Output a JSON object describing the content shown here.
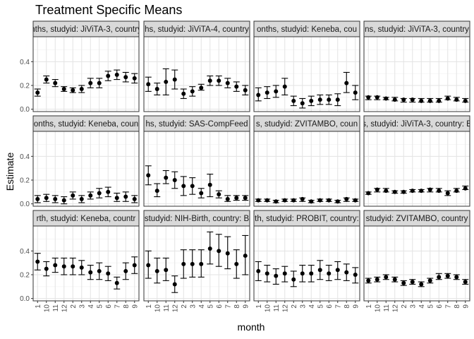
{
  "chart_data": {
    "type": "scatter",
    "title": "Treatment Specific Means",
    "xlabel": "month",
    "ylabel": "Estimate",
    "x_categories": [
      "1",
      "10",
      "11",
      "12",
      "2",
      "3",
      "4",
      "5",
      "6",
      "7",
      "8",
      "9"
    ],
    "y_ticks": [
      0.0,
      0.2,
      0.4
    ],
    "y_tick_labels": [
      "0.0",
      "0.2",
      "0.4"
    ],
    "ylim": [
      -0.02,
      0.61
    ],
    "grid": true,
    "panels": [
      {
        "strip": "nths, studyid: JiViTA-3, country",
        "est": [
          0.14,
          0.25,
          0.22,
          0.17,
          0.16,
          0.17,
          0.22,
          0.22,
          0.28,
          0.29,
          0.27,
          0.26
        ],
        "lo": [
          0.11,
          0.22,
          0.19,
          0.15,
          0.14,
          0.14,
          0.18,
          0.18,
          0.24,
          0.25,
          0.23,
          0.22
        ],
        "hi": [
          0.17,
          0.28,
          0.25,
          0.19,
          0.18,
          0.2,
          0.26,
          0.26,
          0.32,
          0.33,
          0.31,
          0.3
        ]
      },
      {
        "strip": "hs, studyid: JiViTA-4, country",
        "est": [
          0.21,
          0.17,
          0.23,
          0.25,
          0.13,
          0.15,
          0.18,
          0.24,
          0.24,
          0.22,
          0.19,
          0.16
        ],
        "lo": [
          0.15,
          0.12,
          0.12,
          0.17,
          0.09,
          0.11,
          0.16,
          0.2,
          0.2,
          0.18,
          0.15,
          0.12
        ],
        "hi": [
          0.27,
          0.22,
          0.34,
          0.33,
          0.17,
          0.19,
          0.21,
          0.28,
          0.28,
          0.26,
          0.23,
          0.2
        ]
      },
      {
        "strip": "onths, studyid: Keneba, cou",
        "est": [
          0.12,
          0.14,
          0.15,
          0.19,
          0.07,
          0.05,
          0.07,
          0.08,
          0.08,
          0.08,
          0.22,
          0.14
        ],
        "lo": [
          0.07,
          0.09,
          0.1,
          0.12,
          0.03,
          0.01,
          0.03,
          0.04,
          0.04,
          0.03,
          0.14,
          0.08
        ],
        "hi": [
          0.18,
          0.19,
          0.2,
          0.26,
          0.11,
          0.09,
          0.11,
          0.12,
          0.12,
          0.13,
          0.31,
          0.2
        ]
      },
      {
        "strip": "ns, studyid: JiViTA-3, country",
        "est": [
          0.1,
          0.1,
          0.09,
          0.08,
          0.08,
          0.08,
          0.07,
          0.07,
          0.07,
          0.09,
          0.08,
          0.07
        ],
        "lo": [
          0.08,
          0.08,
          0.08,
          0.07,
          0.06,
          0.06,
          0.06,
          0.06,
          0.06,
          0.08,
          0.07,
          0.06
        ],
        "hi": [
          0.11,
          0.11,
          0.1,
          0.1,
          0.09,
          0.09,
          0.09,
          0.09,
          0.09,
          0.11,
          0.1,
          0.09
        ]
      },
      {
        "strip": "onths, studyid: Keneba, coun",
        "est": [
          0.04,
          0.05,
          0.04,
          0.03,
          0.07,
          0.04,
          0.07,
          0.09,
          0.1,
          0.05,
          0.06,
          0.04
        ],
        "lo": [
          0.01,
          0.02,
          0.01,
          0.0,
          0.04,
          0.01,
          0.04,
          0.05,
          0.06,
          0.02,
          0.02,
          0.01
        ],
        "hi": [
          0.07,
          0.08,
          0.07,
          0.06,
          0.1,
          0.07,
          0.1,
          0.13,
          0.14,
          0.09,
          0.1,
          0.07
        ]
      },
      {
        "strip": "hs, studyid: SAS-CompFeed",
        "est": [
          0.24,
          0.11,
          0.22,
          0.2,
          0.15,
          0.15,
          0.09,
          0.16,
          0.08,
          0.04,
          0.05,
          0.05
        ],
        "lo": [
          0.16,
          0.06,
          0.17,
          0.13,
          0.07,
          0.08,
          0.05,
          0.06,
          0.05,
          0.02,
          0.03,
          0.03
        ],
        "hi": [
          0.32,
          0.17,
          0.28,
          0.27,
          0.23,
          0.22,
          0.13,
          0.25,
          0.11,
          0.07,
          0.07,
          0.07
        ]
      },
      {
        "strip": "s, studyid: ZVITAMBO, coun",
        "est": [
          0.03,
          0.03,
          0.02,
          0.03,
          0.03,
          0.04,
          0.02,
          0.03,
          0.03,
          0.02,
          0.04,
          0.03
        ],
        "lo": [
          0.02,
          0.02,
          0.01,
          0.02,
          0.02,
          0.02,
          0.01,
          0.02,
          0.02,
          0.01,
          0.02,
          0.02
        ],
        "hi": [
          0.04,
          0.04,
          0.03,
          0.04,
          0.04,
          0.05,
          0.03,
          0.04,
          0.04,
          0.03,
          0.05,
          0.04
        ]
      },
      {
        "strip": "s, studyid: JiViTA-3, country: B",
        "est": [
          0.09,
          0.12,
          0.11,
          0.1,
          0.1,
          0.11,
          0.11,
          0.12,
          0.11,
          0.09,
          0.11,
          0.13
        ],
        "lo": [
          0.08,
          0.1,
          0.1,
          0.09,
          0.09,
          0.1,
          0.1,
          0.1,
          0.1,
          0.07,
          0.1,
          0.12
        ],
        "hi": [
          0.1,
          0.13,
          0.13,
          0.11,
          0.11,
          0.12,
          0.12,
          0.13,
          0.13,
          0.11,
          0.13,
          0.15
        ]
      },
      {
        "strip": "rth, studyid: Keneba, countr",
        "est": [
          0.31,
          0.25,
          0.28,
          0.27,
          0.27,
          0.26,
          0.22,
          0.23,
          0.21,
          0.13,
          0.23,
          0.28
        ],
        "lo": [
          0.24,
          0.19,
          0.22,
          0.2,
          0.2,
          0.2,
          0.16,
          0.16,
          0.15,
          0.08,
          0.16,
          0.21
        ],
        "hi": [
          0.38,
          0.31,
          0.34,
          0.34,
          0.34,
          0.32,
          0.28,
          0.3,
          0.27,
          0.18,
          0.3,
          0.35
        ]
      },
      {
        "strip": "studyid: NIH-Birth, country: B",
        "est": [
          0.28,
          0.23,
          0.24,
          0.12,
          0.29,
          0.29,
          0.29,
          0.42,
          0.4,
          0.38,
          0.29,
          0.36
        ],
        "lo": [
          0.17,
          0.13,
          0.15,
          0.05,
          0.17,
          0.18,
          0.18,
          0.29,
          0.27,
          0.25,
          0.17,
          0.2
        ],
        "hi": [
          0.4,
          0.34,
          0.34,
          0.19,
          0.41,
          0.41,
          0.41,
          0.56,
          0.54,
          0.52,
          0.41,
          0.53
        ]
      },
      {
        "strip": "th, studyid: PROBIT, country:",
        "est": [
          0.23,
          0.21,
          0.19,
          0.21,
          0.16,
          0.21,
          0.21,
          0.24,
          0.21,
          0.24,
          0.22,
          0.2
        ],
        "lo": [
          0.15,
          0.14,
          0.12,
          0.14,
          0.1,
          0.14,
          0.14,
          0.16,
          0.15,
          0.16,
          0.15,
          0.13
        ],
        "hi": [
          0.31,
          0.28,
          0.25,
          0.27,
          0.23,
          0.28,
          0.28,
          0.32,
          0.28,
          0.31,
          0.29,
          0.26
        ]
      },
      {
        "strip": "studyid: ZVITAMBO, country",
        "est": [
          0.15,
          0.16,
          0.18,
          0.16,
          0.13,
          0.14,
          0.12,
          0.15,
          0.18,
          0.19,
          0.18,
          0.14
        ],
        "lo": [
          0.13,
          0.14,
          0.16,
          0.14,
          0.11,
          0.12,
          0.1,
          0.13,
          0.16,
          0.17,
          0.16,
          0.12
        ],
        "hi": [
          0.17,
          0.18,
          0.2,
          0.18,
          0.15,
          0.16,
          0.14,
          0.17,
          0.21,
          0.21,
          0.2,
          0.16
        ]
      }
    ]
  }
}
